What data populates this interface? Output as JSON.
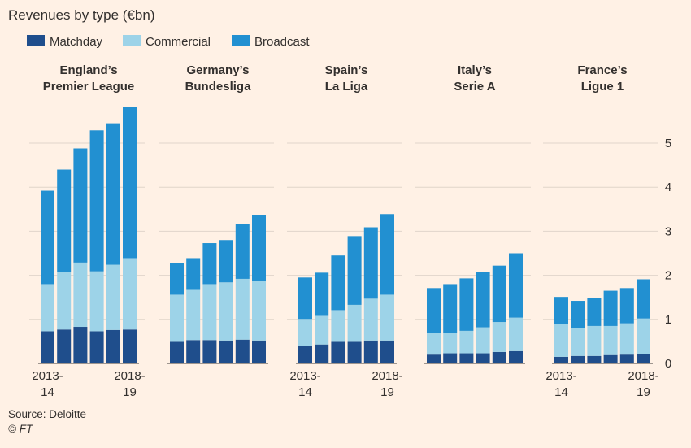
{
  "title": "Revenues by type (€bn)",
  "legend": [
    {
      "label": "Matchday",
      "color": "#1F4E8C"
    },
    {
      "label": "Commercial",
      "color": "#9DD3E8"
    },
    {
      "label": "Broadcast",
      "color": "#2290D1"
    }
  ],
  "source": "Source: Deloitte",
  "credit": "© FT",
  "chart_data": {
    "type": "bar",
    "stacked": true,
    "ylim": [
      0,
      5.5
    ],
    "yticks": [
      "0",
      "1",
      "2",
      "3",
      "4",
      "5"
    ],
    "grid": true,
    "legend_position": "top-left",
    "series_order": [
      "Matchday",
      "Commercial",
      "Broadcast"
    ],
    "panels": [
      {
        "title_lines": [
          "England’s",
          "Premier League"
        ],
        "x_label_first": [
          "2013-",
          "14"
        ],
        "x_label_last": [
          "2018-",
          "19"
        ],
        "matchday": [
          0.73,
          0.77,
          0.83,
          0.73,
          0.76,
          0.77
        ],
        "commercial": [
          1.07,
          1.3,
          1.46,
          1.36,
          1.48,
          1.62
        ],
        "broadcast": [
          2.12,
          2.33,
          2.59,
          3.2,
          3.21,
          3.43
        ]
      },
      {
        "title_lines": [
          "Germany’s",
          "Bundesliga"
        ],
        "x_label_first": [
          "",
          ""
        ],
        "x_label_last": [
          "",
          ""
        ],
        "matchday": [
          0.49,
          0.53,
          0.53,
          0.52,
          0.54,
          0.52
        ],
        "commercial": [
          1.07,
          1.14,
          1.27,
          1.32,
          1.38,
          1.35
        ],
        "broadcast": [
          0.72,
          0.72,
          0.93,
          0.96,
          1.25,
          1.49
        ]
      },
      {
        "title_lines": [
          "Spain’s",
          "La Liga"
        ],
        "x_label_first": [
          "2013-",
          "14"
        ],
        "x_label_last": [
          "2018-",
          "19"
        ],
        "matchday": [
          0.4,
          0.43,
          0.49,
          0.49,
          0.52,
          0.52
        ],
        "commercial": [
          0.61,
          0.65,
          0.72,
          0.84,
          0.95,
          1.04
        ],
        "broadcast": [
          0.94,
          0.98,
          1.24,
          1.56,
          1.62,
          1.83
        ]
      },
      {
        "title_lines": [
          "Italy’s",
          "Serie A"
        ],
        "x_label_first": [
          "",
          ""
        ],
        "x_label_last": [
          "",
          ""
        ],
        "matchday": [
          0.2,
          0.23,
          0.23,
          0.23,
          0.26,
          0.28
        ],
        "commercial": [
          0.5,
          0.46,
          0.51,
          0.59,
          0.68,
          0.76
        ],
        "broadcast": [
          1.01,
          1.11,
          1.19,
          1.25,
          1.28,
          1.46
        ]
      },
      {
        "title_lines": [
          "France’s",
          "Ligue 1"
        ],
        "x_label_first": [
          "2013-",
          "14"
        ],
        "x_label_last": [
          "2018-",
          "19"
        ],
        "matchday": [
          0.15,
          0.17,
          0.17,
          0.19,
          0.2,
          0.21
        ],
        "commercial": [
          0.75,
          0.63,
          0.68,
          0.66,
          0.71,
          0.81
        ],
        "broadcast": [
          0.61,
          0.62,
          0.64,
          0.8,
          0.8,
          0.89
        ]
      }
    ]
  }
}
